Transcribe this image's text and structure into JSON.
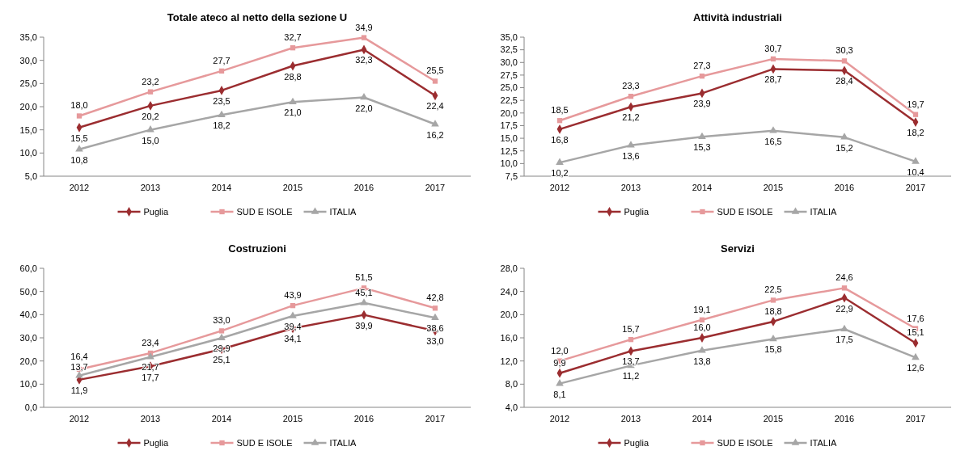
{
  "chart_data": [
    {
      "type": "line",
      "title": "Totale ateco al netto della sezione U",
      "categories": [
        "2012",
        "2013",
        "2014",
        "2015",
        "2016",
        "2017"
      ],
      "ylim": [
        5,
        35
      ],
      "yticks": [
        {
          "value": 5,
          "label": "5,0"
        },
        {
          "value": 10,
          "label": "10,0"
        },
        {
          "value": 15,
          "label": "15,0"
        },
        {
          "value": 20,
          "label": "20,0"
        },
        {
          "value": 25,
          "label": "25,0"
        },
        {
          "value": 30,
          "label": "30,0"
        },
        {
          "value": 35,
          "label": "35,0"
        }
      ],
      "grid": false,
      "legend": "bottom",
      "series": [
        {
          "name": "Puglia",
          "color": "#9b2d30",
          "marker": "diamond",
          "values": [
            15.5,
            20.2,
            23.5,
            28.8,
            32.3,
            22.4
          ],
          "value_labels": [
            "15,5",
            "20,2",
            "23,5",
            "28,8",
            "32,3",
            "22,4"
          ]
        },
        {
          "name": "SUD E ISOLE",
          "color": "#e6999b",
          "marker": "square",
          "values": [
            18.0,
            23.2,
            27.7,
            32.7,
            34.9,
            25.5
          ],
          "value_labels": [
            "18,0",
            "23,2",
            "27,7",
            "32,7",
            "34,9",
            "25,5"
          ]
        },
        {
          "name": "ITALIA",
          "color": "#a6a6a6",
          "marker": "triangle",
          "values": [
            10.8,
            15.0,
            18.2,
            21.0,
            22.0,
            16.2
          ],
          "value_labels": [
            "10,8",
            "15,0",
            "18,2",
            "21,0",
            "22,0",
            "16,2"
          ]
        }
      ]
    },
    {
      "type": "line",
      "title": "Attività industriali",
      "categories": [
        "2012",
        "2013",
        "2014",
        "2015",
        "2016",
        "2017"
      ],
      "ylim": [
        7.5,
        35
      ],
      "yticks": [
        {
          "value": 7.5,
          "label": "7,5"
        },
        {
          "value": 10,
          "label": "10,0"
        },
        {
          "value": 12.5,
          "label": "12,5"
        },
        {
          "value": 15,
          "label": "15,0"
        },
        {
          "value": 17.5,
          "label": "17,5"
        },
        {
          "value": 20,
          "label": "20,0"
        },
        {
          "value": 22.5,
          "label": "22,5"
        },
        {
          "value": 25,
          "label": "25,0"
        },
        {
          "value": 27.5,
          "label": "27,5"
        },
        {
          "value": 30,
          "label": "30,0"
        },
        {
          "value": 32.5,
          "label": "32,5"
        },
        {
          "value": 35,
          "label": "35,0"
        }
      ],
      "grid": false,
      "legend": "bottom",
      "series": [
        {
          "name": "Puglia",
          "color": "#9b2d30",
          "marker": "diamond",
          "values": [
            16.8,
            21.2,
            23.9,
            28.7,
            28.4,
            18.2
          ],
          "value_labels": [
            "16,8",
            "21,2",
            "23,9",
            "28,7",
            "28,4",
            "18,2"
          ]
        },
        {
          "name": "SUD E ISOLE",
          "color": "#e6999b",
          "marker": "square",
          "values": [
            18.5,
            23.3,
            27.3,
            30.7,
            30.3,
            19.7
          ],
          "value_labels": [
            "18,5",
            "23,3",
            "27,3",
            "30,7",
            "30,3",
            "19,7"
          ]
        },
        {
          "name": "ITALIA",
          "color": "#a6a6a6",
          "marker": "triangle",
          "values": [
            10.2,
            13.6,
            15.3,
            16.5,
            15.2,
            10.4
          ],
          "value_labels": [
            "10,2",
            "13,6",
            "15,3",
            "16,5",
            "15,2",
            "10,4"
          ]
        }
      ]
    },
    {
      "type": "line",
      "title": "Costruzioni",
      "categories": [
        "2012",
        "2013",
        "2014",
        "2015",
        "2016",
        "2017"
      ],
      "ylim": [
        0,
        60
      ],
      "yticks": [
        {
          "value": 0,
          "label": "0,0"
        },
        {
          "value": 10,
          "label": "10,0"
        },
        {
          "value": 20,
          "label": "20,0"
        },
        {
          "value": 30,
          "label": "30,0"
        },
        {
          "value": 40,
          "label": "40,0"
        },
        {
          "value": 50,
          "label": "50,0"
        },
        {
          "value": 60,
          "label": "60,0"
        }
      ],
      "grid": false,
      "legend": "bottom",
      "series": [
        {
          "name": "Puglia",
          "color": "#9b2d30",
          "marker": "diamond",
          "values": [
            11.9,
            17.7,
            25.1,
            34.1,
            39.9,
            33.0
          ],
          "value_labels": [
            "11,9",
            "17,7",
            "25,1",
            "34,1",
            "39,9",
            "33,0"
          ]
        },
        {
          "name": "SUD E ISOLE",
          "color": "#e6999b",
          "marker": "square",
          "values": [
            16.4,
            23.4,
            33.0,
            43.9,
            51.5,
            42.8
          ],
          "value_labels": [
            "16,4",
            "23,4",
            "33,0",
            "43,9",
            "51,5",
            "42,8"
          ]
        },
        {
          "name": "ITALIA",
          "color": "#a6a6a6",
          "marker": "triangle",
          "values": [
            13.7,
            21.7,
            29.9,
            39.4,
            45.1,
            38.6
          ],
          "value_labels": [
            "13,7",
            "21,7",
            "29,9",
            "39,4",
            "45,1",
            "38,6"
          ]
        }
      ]
    },
    {
      "type": "line",
      "title": "Servizi",
      "categories": [
        "2012",
        "2013",
        "2014",
        "2015",
        "2016",
        "2017"
      ],
      "ylim": [
        4,
        28
      ],
      "yticks": [
        {
          "value": 4,
          "label": "4,0"
        },
        {
          "value": 8,
          "label": "8,0"
        },
        {
          "value": 12,
          "label": "12,0"
        },
        {
          "value": 16,
          "label": "16,0"
        },
        {
          "value": 20,
          "label": "20,0"
        },
        {
          "value": 24,
          "label": "24,0"
        },
        {
          "value": 28,
          "label": "28,0"
        }
      ],
      "grid": false,
      "legend": "bottom",
      "series": [
        {
          "name": "Puglia",
          "color": "#9b2d30",
          "marker": "diamond",
          "values": [
            9.9,
            13.7,
            16.0,
            18.8,
            22.9,
            15.1
          ],
          "value_labels": [
            "9,9",
            "13,7",
            "16,0",
            "18,8",
            "22,9",
            "15,1"
          ]
        },
        {
          "name": "SUD E ISOLE",
          "color": "#e6999b",
          "marker": "square",
          "values": [
            12.0,
            15.7,
            19.1,
            22.5,
            24.6,
            17.6
          ],
          "value_labels": [
            "12,0",
            "15,7",
            "19,1",
            "22,5",
            "24,6",
            "17,6"
          ]
        },
        {
          "name": "ITALIA",
          "color": "#a6a6a6",
          "marker": "triangle",
          "values": [
            8.1,
            11.2,
            13.8,
            15.8,
            17.5,
            12.6
          ],
          "value_labels": [
            "8,1",
            "11,2",
            "13,8",
            "15,8",
            "17,5",
            "12,6"
          ]
        }
      ]
    }
  ]
}
